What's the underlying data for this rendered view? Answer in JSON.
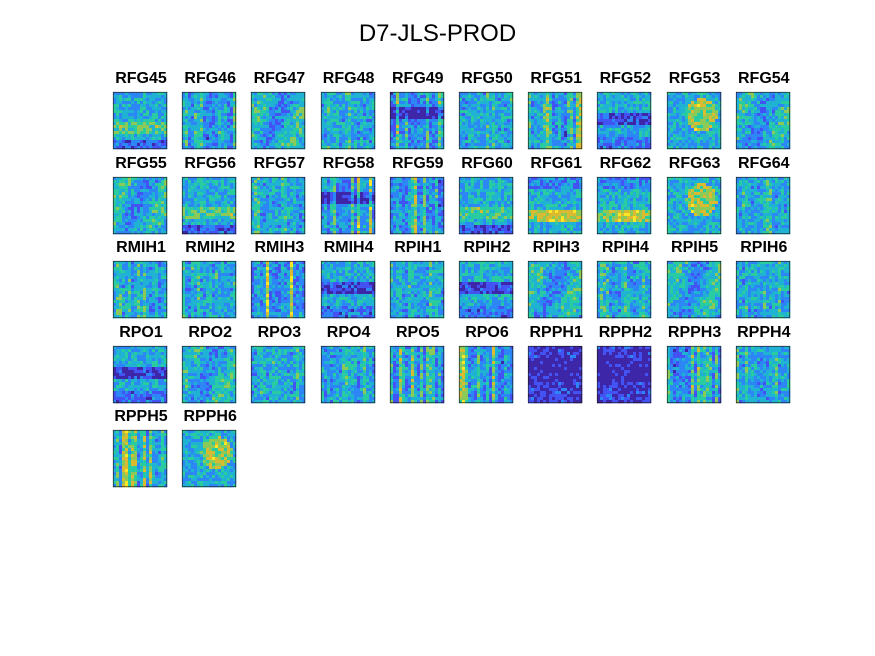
{
  "chart_data": {
    "type": "heatmap",
    "title": "D7-JLS-PROD",
    "layout": "small-multiples",
    "columns": 10,
    "colormap": [
      "#3e26a8",
      "#4352f3",
      "#2d86f6",
      "#1fb2d3",
      "#28cca0",
      "#8bca58",
      "#d9ba30",
      "#fde725"
    ],
    "panels": [
      {
        "label": "RFG45",
        "style": "low-band"
      },
      {
        "label": "RFG46",
        "style": "vertical"
      },
      {
        "label": "RFG47",
        "style": "patchy"
      },
      {
        "label": "RFG48",
        "style": "mixed"
      },
      {
        "label": "RFG49",
        "style": "vertical-dark"
      },
      {
        "label": "RFG50",
        "style": "mixed"
      },
      {
        "label": "RFG51",
        "style": "vertical"
      },
      {
        "label": "RFG52",
        "style": "dark-band"
      },
      {
        "label": "RFG53",
        "style": "warm-patch"
      },
      {
        "label": "RFG54",
        "style": "patchy"
      },
      {
        "label": "RFG55",
        "style": "patchy"
      },
      {
        "label": "RFG56",
        "style": "low-band"
      },
      {
        "label": "RFG57",
        "style": "mixed"
      },
      {
        "label": "RFG58",
        "style": "vertical-dark"
      },
      {
        "label": "RFG59",
        "style": "vertical"
      },
      {
        "label": "RFG60",
        "style": "low-band"
      },
      {
        "label": "RFG61",
        "style": "yellow-band"
      },
      {
        "label": "RFG62",
        "style": "yellow-band"
      },
      {
        "label": "RFG63",
        "style": "warm-patch"
      },
      {
        "label": "RFG64",
        "style": "mixed"
      },
      {
        "label": "RMIH1",
        "style": "mixed"
      },
      {
        "label": "RMIH2",
        "style": "mixed"
      },
      {
        "label": "RMIH3",
        "style": "vertical"
      },
      {
        "label": "RMIH4",
        "style": "dark-band"
      },
      {
        "label": "RPIH1",
        "style": "mixed"
      },
      {
        "label": "RPIH2",
        "style": "dark-band"
      },
      {
        "label": "RPIH3",
        "style": "patchy"
      },
      {
        "label": "RPIH4",
        "style": "mixed"
      },
      {
        "label": "RPIH5",
        "style": "patchy"
      },
      {
        "label": "RPIH6",
        "style": "mixed"
      },
      {
        "label": "RPO1",
        "style": "dark-band"
      },
      {
        "label": "RPO2",
        "style": "patchy"
      },
      {
        "label": "RPO3",
        "style": "mixed"
      },
      {
        "label": "RPO4",
        "style": "mixed"
      },
      {
        "label": "RPO5",
        "style": "vertical"
      },
      {
        "label": "RPO6",
        "style": "vertical"
      },
      {
        "label": "RPPH1",
        "style": "very-dark"
      },
      {
        "label": "RPPH2",
        "style": "very-dark"
      },
      {
        "label": "RPPH3",
        "style": "vertical"
      },
      {
        "label": "RPPH4",
        "style": "mixed"
      },
      {
        "label": "RPPH5",
        "style": "vertical"
      },
      {
        "label": "RPPH6",
        "style": "warm-patch"
      }
    ]
  }
}
